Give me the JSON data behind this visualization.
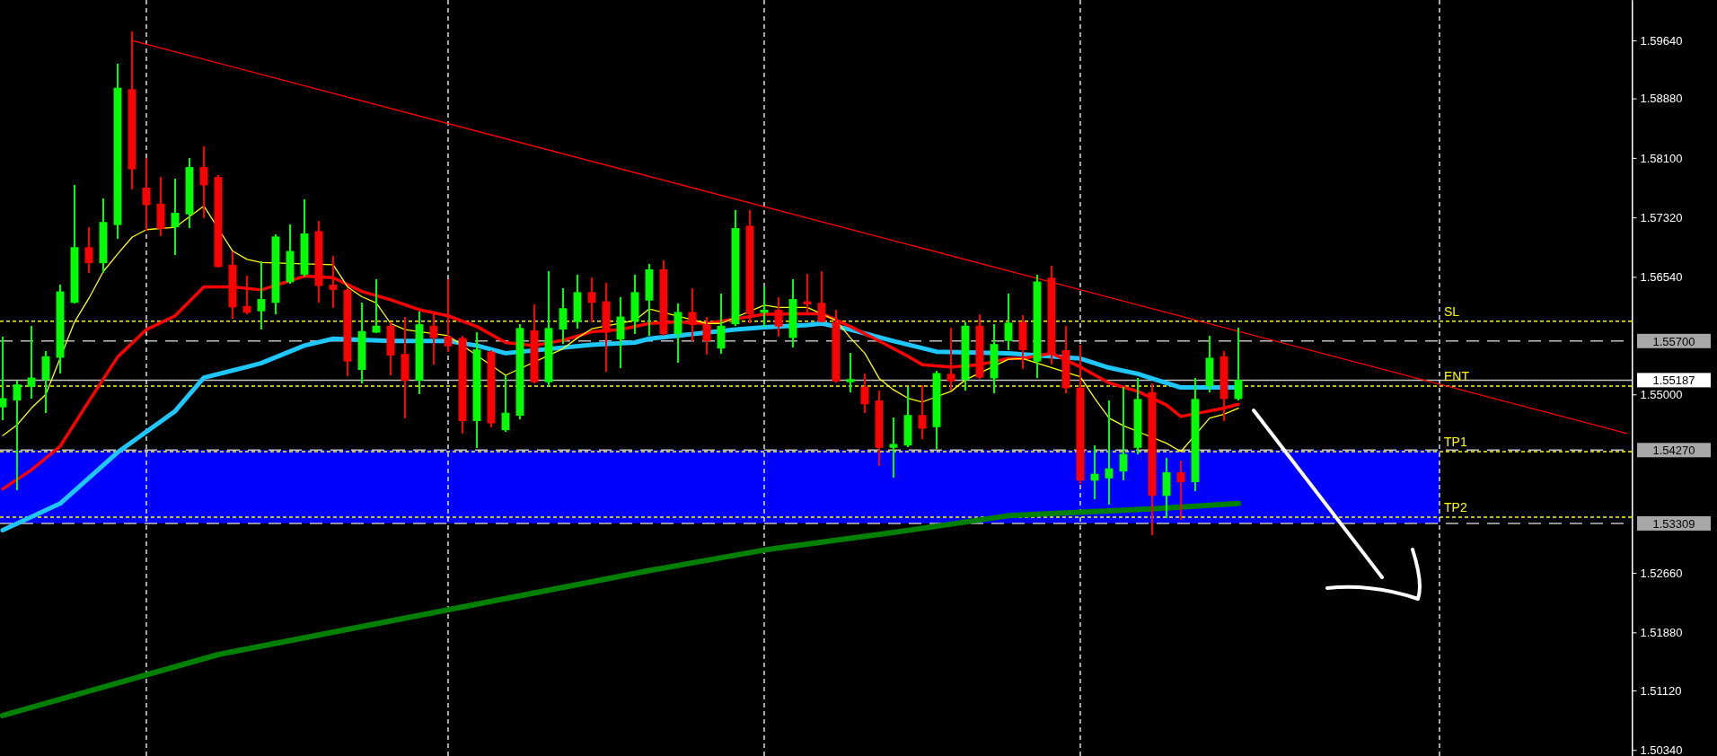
{
  "chart_data": {
    "type": "candlestick",
    "categories": [
      null,
      null,
      null,
      null,
      null,
      null,
      null,
      null,
      null,
      null,
      null,
      null,
      null,
      null,
      null,
      null,
      null,
      null,
      null,
      null,
      null,
      null,
      null,
      null,
      null,
      null,
      null,
      null,
      null,
      null,
      null,
      null,
      null,
      null,
      null,
      null,
      null,
      null,
      null,
      null,
      null,
      null,
      null,
      null,
      null,
      null,
      null,
      null,
      null,
      null,
      null,
      null,
      null,
      null,
      null,
      null,
      null,
      null,
      null,
      null,
      null,
      null,
      null,
      null,
      null,
      null,
      null,
      null,
      null,
      null,
      null,
      null,
      null,
      null,
      null,
      null,
      null,
      null,
      null,
      null,
      null,
      null,
      null,
      null,
      null,
      null,
      null,
      null,
      null,
      null,
      null,
      null,
      null,
      null,
      null,
      null,
      null,
      null,
      null,
      null,
      null,
      null,
      null,
      null,
      null,
      null,
      null,
      null,
      null,
      null,
      null,
      null,
      null,
      null
    ],
    "ohlc": [
      [
        1.5483,
        1.5576,
        1.5466,
        1.5495
      ],
      [
        1.5492,
        1.5518,
        1.5374,
        1.5513
      ],
      [
        1.551,
        1.559,
        1.5495,
        1.5522
      ],
      [
        1.5519,
        1.5557,
        1.5476,
        1.555
      ],
      [
        1.5548,
        1.5644,
        1.5527,
        1.5635
      ],
      [
        1.562,
        1.5775,
        1.5619,
        1.5693
      ],
      [
        1.5693,
        1.5719,
        1.5659,
        1.5672
      ],
      [
        1.5672,
        1.5757,
        1.5659,
        1.5726
      ],
      [
        1.5722,
        1.5933,
        1.5704,
        1.5902
      ],
      [
        1.59,
        1.5976,
        1.5769,
        1.5795
      ],
      [
        1.5771,
        1.581,
        1.5715,
        1.5748
      ],
      [
        1.575,
        1.5785,
        1.5708,
        1.5717
      ],
      [
        1.5719,
        1.5783,
        1.5683,
        1.5738
      ],
      [
        1.5736,
        1.581,
        1.5718,
        1.5798
      ],
      [
        1.5798,
        1.5825,
        1.5731,
        1.5774
      ],
      [
        1.5785,
        1.5787,
        1.5666,
        1.5667
      ],
      [
        1.567,
        1.5688,
        1.5599,
        1.5614
      ],
      [
        1.5616,
        1.5656,
        1.5605,
        1.5607
      ],
      [
        1.5609,
        1.5675,
        1.5585,
        1.5625
      ],
      [
        1.562,
        1.571,
        1.5605,
        1.5707
      ],
      [
        1.5647,
        1.5723,
        1.5645,
        1.5688
      ],
      [
        1.5657,
        1.5756,
        1.5655,
        1.5711
      ],
      [
        1.5714,
        1.5727,
        1.562,
        1.5642
      ],
      [
        1.5644,
        1.5681,
        1.5613,
        1.5637
      ],
      [
        1.5637,
        1.5639,
        1.5524,
        1.5543
      ],
      [
        1.5532,
        1.562,
        1.5515,
        1.5583
      ],
      [
        1.5581,
        1.5651,
        1.558,
        1.559
      ],
      [
        1.559,
        1.5594,
        1.5525,
        1.5551
      ],
      [
        1.5553,
        1.5602,
        1.5468,
        1.5518
      ],
      [
        1.5518,
        1.5609,
        1.55,
        1.5592
      ],
      [
        1.559,
        1.5606,
        1.5539,
        1.5574
      ],
      [
        1.5576,
        1.5651,
        1.5556,
        1.5563
      ],
      [
        1.5574,
        1.5577,
        1.5449,
        1.5465
      ],
      [
        1.5465,
        1.5581,
        1.543,
        1.5559
      ],
      [
        1.5556,
        1.5558,
        1.5457,
        1.5462
      ],
      [
        1.5453,
        1.5525,
        1.5451,
        1.5476
      ],
      [
        1.5472,
        1.5592,
        1.5467,
        1.5587
      ],
      [
        1.5584,
        1.5618,
        1.5514,
        1.5516
      ],
      [
        1.5516,
        1.5662,
        1.5511,
        1.5587
      ],
      [
        1.5585,
        1.5639,
        1.5566,
        1.5613
      ],
      [
        1.5595,
        1.5657,
        1.5586,
        1.5634
      ],
      [
        1.5634,
        1.5653,
        1.5594,
        1.562
      ],
      [
        1.5622,
        1.5646,
        1.553,
        1.5581
      ],
      [
        1.5572,
        1.5627,
        1.5534,
        1.5602
      ],
      [
        1.5596,
        1.5657,
        1.5579,
        1.5634
      ],
      [
        1.5623,
        1.5671,
        1.5577,
        1.5664
      ],
      [
        1.5664,
        1.5676,
        1.5577,
        1.5579
      ],
      [
        1.5579,
        1.5619,
        1.5541,
        1.5608
      ],
      [
        1.5608,
        1.5639,
        1.557,
        1.5591
      ],
      [
        1.5591,
        1.5602,
        1.5552,
        1.557
      ],
      [
        1.556,
        1.5632,
        1.5553,
        1.559
      ],
      [
        1.5592,
        1.5742,
        1.559,
        1.5718
      ],
      [
        1.5721,
        1.5742,
        1.5593,
        1.5605
      ],
      [
        1.5607,
        1.5642,
        1.5589,
        1.5611
      ],
      [
        1.5611,
        1.5627,
        1.5576,
        1.5589
      ],
      [
        1.5574,
        1.5651,
        1.5562,
        1.5625
      ],
      [
        1.5622,
        1.5658,
        1.5605,
        1.5618
      ],
      [
        1.562,
        1.5662,
        1.5594,
        1.5595
      ],
      [
        1.5595,
        1.5611,
        1.5516,
        1.5517
      ],
      [
        1.5516,
        1.5555,
        1.5503,
        1.552
      ],
      [
        1.551,
        1.5527,
        1.5476,
        1.5487
      ],
      [
        1.5492,
        1.5505,
        1.5406,
        1.543
      ],
      [
        1.543,
        1.547,
        1.5391,
        1.5435
      ],
      [
        1.5433,
        1.551,
        1.5431,
        1.5473
      ],
      [
        1.5473,
        1.5512,
        1.5441,
        1.5455
      ],
      [
        1.5457,
        1.5531,
        1.5428,
        1.5528
      ],
      [
        1.5527,
        1.5587,
        1.5505,
        1.5517
      ],
      [
        1.5519,
        1.5595,
        1.5505,
        1.559
      ],
      [
        1.559,
        1.5605,
        1.552,
        1.5522
      ],
      [
        1.5521,
        1.5592,
        1.5501,
        1.5566
      ],
      [
        1.557,
        1.5632,
        1.5558,
        1.5594
      ],
      [
        1.5595,
        1.5604,
        1.5533,
        1.5558
      ],
      [
        1.5543,
        1.5657,
        1.5522,
        1.5648
      ],
      [
        1.5653,
        1.5669,
        1.5539,
        1.5552
      ],
      [
        1.5558,
        1.559,
        1.5501,
        1.5508
      ],
      [
        1.5509,
        1.5565,
        1.5383,
        1.5387
      ],
      [
        1.5387,
        1.5433,
        1.5363,
        1.5396
      ],
      [
        1.539,
        1.5492,
        1.5356,
        1.5403
      ],
      [
        1.5399,
        1.551,
        1.5387,
        1.5422
      ],
      [
        1.543,
        1.5522,
        1.5421,
        1.5494
      ],
      [
        1.5503,
        1.5514,
        1.5315,
        1.5367
      ],
      [
        1.5367,
        1.5417,
        1.5338,
        1.5398
      ],
      [
        1.5398,
        1.5413,
        1.5336,
        1.5385
      ],
      [
        1.5385,
        1.5522,
        1.5373,
        1.5494
      ],
      [
        1.5511,
        1.5577,
        1.5503,
        1.5548
      ],
      [
        1.555,
        1.5557,
        1.5465,
        1.5494
      ],
      [
        1.5494,
        1.5587,
        1.5492,
        1.5519
      ],
      null,
      null,
      null,
      null,
      null,
      null,
      null,
      null,
      null,
      null,
      null,
      null,
      null,
      null,
      null,
      null,
      null,
      null,
      null,
      null,
      null,
      null,
      null,
      null,
      null,
      null,
      null
    ],
    "colors": [
      "#00ff00",
      "#00ff00",
      "#00ff00",
      "#00ff00",
      "#00ff00",
      "#00ff00",
      "#ff0000",
      "#00ff00",
      "#00ff00",
      "#ff0000",
      "#ff0000",
      "#ff0000",
      "#00ff00",
      "#00ff00",
      "#ff0000",
      "#ff0000",
      "#ff0000",
      "#ff0000",
      "#00ff00",
      "#00ff00",
      "#00ff00",
      "#00ff00",
      "#ff0000",
      "#ff0000",
      "#ff0000",
      "#00ff00",
      "#00ff00",
      "#ff0000",
      "#ff0000",
      "#00ff00",
      "#ff0000",
      "#ff0000",
      "#ff0000",
      "#00ff00",
      "#ff0000",
      "#00ff00",
      "#00ff00",
      "#ff0000",
      "#00ff00",
      "#00ff00",
      "#00ff00",
      "#ff0000",
      "#ff0000",
      "#00ff00",
      "#00ff00",
      "#00ff00",
      "#ff0000",
      "#00ff00",
      "#ff0000",
      "#ff0000",
      "#00ff00",
      "#00ff00",
      "#ff0000",
      "#00ff00",
      "#ff0000",
      "#00ff00",
      "#ff0000",
      "#ff0000",
      "#ff0000",
      "#00ff00",
      "#ff0000",
      "#ff0000",
      "#00ff00",
      "#00ff00",
      "#ff0000",
      "#00ff00",
      "#ff0000",
      "#00ff00",
      "#ff0000",
      "#00ff00",
      "#00ff00",
      "#ff0000",
      "#00ff00",
      "#ff0000",
      "#ff0000",
      "#ff0000",
      "#00ff00",
      "#00ff00",
      "#00ff00",
      "#00ff00",
      "#ff0000",
      "#00ff00",
      "#ff0000",
      "#00ff00",
      "#00ff00",
      "#ff0000",
      "#00ff00",
      null,
      null,
      null,
      null,
      null,
      null,
      null,
      null,
      null,
      null,
      null,
      null,
      null,
      null,
      null,
      null,
      null,
      null,
      null,
      null,
      null,
      null,
      null,
      null,
      null,
      null,
      null
    ],
    "series": [
      {
        "type": "line",
        "color": "#008000",
        "values": [
          1.5079,
          null,
          null,
          null,
          null,
          null,
          null,
          null,
          null,
          null,
          null,
          null,
          null,
          null,
          null,
          1.5159,
          null,
          null,
          null,
          null,
          null,
          null,
          null,
          null,
          null,
          null,
          null,
          null,
          null,
          null,
          1.5214,
          null,
          null,
          null,
          null,
          null,
          null,
          null,
          null,
          null,
          null,
          null,
          null,
          null,
          null,
          1.5269,
          null,
          null,
          null,
          null,
          null,
          null,
          null,
          1.5296,
          null,
          null,
          null,
          null,
          null,
          null,
          null,
          null,
          1.5319,
          null,
          null,
          null,
          null,
          null,
          null,
          null,
          1.5341,
          null,
          null,
          null,
          null,
          null,
          null,
          null,
          null,
          null,
          1.535,
          null,
          null,
          null,
          null,
          null,
          1.5357,
          null,
          null,
          null,
          null,
          null,
          null,
          null,
          null,
          null,
          null,
          null,
          null,
          null,
          null,
          null,
          null,
          null,
          null,
          null,
          null,
          null,
          null,
          null,
          null,
          null,
          null,
          null
        ]
      },
      {
        "type": "line",
        "color": "#1ec8ff",
        "values": [
          1.5322,
          null,
          null,
          null,
          1.5357,
          null,
          null,
          null,
          1.5424,
          null,
          null,
          null,
          1.5478,
          null,
          1.5522,
          null,
          null,
          1.5536,
          1.5541,
          null,
          null,
          1.5564,
          null,
          1.5573,
          null,
          null,
          null,
          1.557,
          null,
          null,
          null,
          1.557,
          null,
          1.5564,
          null,
          1.5554,
          null,
          null,
          null,
          null,
          null,
          1.5565,
          null,
          null,
          1.5568,
          1.5573,
          null,
          null,
          null,
          null,
          null,
          1.5585,
          null,
          1.5588,
          null,
          null,
          1.5591,
          1.5593,
          null,
          1.5585,
          null,
          null,
          1.557,
          null,
          null,
          1.5556,
          null,
          null,
          null,
          null,
          1.5554,
          null,
          null,
          null,
          null,
          1.5547,
          null,
          1.5535,
          null,
          1.5527,
          null,
          1.5515,
          1.5509,
          null,
          1.5509,
          null,
          1.5509,
          null,
          null,
          null,
          null,
          null,
          null,
          null,
          null,
          null,
          null,
          null,
          null,
          null,
          null,
          null,
          null,
          null,
          null,
          null,
          null,
          null,
          null,
          null,
          null,
          null,
          null,
          null
        ]
      },
      {
        "type": "line",
        "color": "#ff0000",
        "values": [
          1.5376,
          null,
          1.5401,
          null,
          1.5432,
          null,
          1.5491,
          null,
          1.5549,
          null,
          1.5585,
          null,
          1.5603,
          null,
          1.5641,
          null,
          1.5641,
          null,
          1.5637,
          null,
          null,
          1.5655,
          null,
          1.5653,
          null,
          1.5635,
          null,
          1.5624,
          null,
          1.5611,
          null,
          1.5603,
          null,
          1.5589,
          null,
          1.5568,
          null,
          1.5564,
          null,
          1.5571,
          null,
          1.5582,
          null,
          1.5585,
          null,
          1.5593,
          null,
          1.5595,
          null,
          1.5593,
          null,
          null,
          null,
          1.5605,
          null,
          null,
          null,
          1.5606,
          null,
          1.5589,
          null,
          1.557,
          null,
          1.555,
          1.5539,
          null,
          1.5536,
          null,
          1.5539,
          null,
          1.5547,
          1.5547,
          null,
          1.5554,
          null,
          1.5536,
          null,
          1.5515,
          null,
          1.5504,
          null,
          1.5486,
          1.5471,
          null,
          null,
          1.5482,
          1.5487,
          null,
          null,
          null,
          null,
          null,
          null,
          null,
          null,
          null,
          null,
          null,
          null,
          null,
          null,
          null,
          null,
          null,
          null,
          null,
          null,
          null,
          null,
          null,
          null,
          null,
          null,
          null
        ]
      },
      {
        "type": "line",
        "color": "#ffff00",
        "values": [
          1.5446,
          1.546,
          1.5482,
          1.55,
          null,
          1.5595,
          1.5626,
          1.5661,
          1.5684,
          1.5706,
          1.5716,
          null,
          1.5719,
          1.5733,
          1.5747,
          null,
          1.5688,
          1.5677,
          1.5673,
          null,
          null,
          null,
          null,
          1.567,
          1.5641,
          1.5628,
          1.562,
          1.5593,
          1.5585,
          null,
          null,
          1.5577,
          null,
          null,
          null,
          1.5525,
          null,
          null,
          null,
          1.556,
          1.5574,
          1.5586,
          null,
          null,
          1.5597,
          1.5612,
          null,
          null,
          null,
          1.5593,
          1.5593,
          null,
          null,
          1.5617,
          1.5614,
          null,
          1.5614,
          null,
          1.5597,
          1.5574,
          1.5554,
          1.5521,
          1.5506,
          1.5495,
          1.549,
          null,
          1.5504,
          1.5519,
          null,
          null,
          1.5546,
          1.5547,
          null,
          null,
          null,
          1.5523,
          1.5495,
          1.5469,
          1.5459,
          null,
          null,
          1.5436,
          1.5425,
          null,
          1.5469,
          1.5474,
          1.5482,
          null,
          null,
          null,
          null,
          null,
          null,
          null,
          null,
          null,
          null,
          null,
          null,
          null,
          null,
          null,
          null,
          null,
          null,
          null,
          null,
          null,
          null,
          null,
          null,
          null,
          null,
          null
        ]
      },
      {
        "type": "line",
        "color": "#ff0000",
        "values": [
          null,
          null,
          null,
          null,
          null,
          null,
          null,
          null,
          null,
          1.5964,
          null,
          null,
          null,
          null,
          null,
          null,
          null,
          null,
          null,
          null,
          null,
          null,
          null,
          null,
          null,
          null,
          null,
          null,
          null,
          null,
          null,
          null,
          null,
          null,
          null,
          null,
          null,
          null,
          null,
          null,
          null,
          null,
          null,
          null,
          null,
          null,
          null,
          null,
          null,
          null,
          null,
          null,
          null,
          null,
          null,
          null,
          null,
          null,
          null,
          null,
          null,
          null,
          null,
          null,
          null,
          null,
          null,
          null,
          null,
          null,
          null,
          null,
          null,
          null,
          null,
          null,
          null,
          null,
          null,
          null,
          null,
          null,
          null,
          null,
          null,
          null,
          null,
          null,
          null,
          null,
          null,
          null,
          null,
          null,
          null,
          null,
          null,
          null,
          null,
          null,
          null,
          null,
          null,
          null,
          null,
          null,
          null,
          null,
          null,
          null,
          null,
          null,
          null,
          1.5449
        ]
      }
    ],
    "ylim": [
      1.5026,
      1.6017
    ],
    "yticks": [
      {
        "value": 1.5964,
        "label": "1.59640"
      },
      {
        "value": 1.5888,
        "label": "1.58880"
      },
      {
        "value": 1.581,
        "label": "1.58100"
      },
      {
        "value": 1.5732,
        "label": "1.57320"
      },
      {
        "value": 1.5654,
        "label": "1.56540"
      },
      {
        "value": 1.55,
        "label": "1.55000"
      },
      {
        "value": 1.5266,
        "label": "1.52660"
      },
      {
        "value": 1.5188,
        "label": "1.51880"
      },
      {
        "value": 1.5112,
        "label": "1.51120"
      },
      {
        "value": 1.5034,
        "label": "1.50340"
      }
    ],
    "tick_labels": "y",
    "grid": "x",
    "bands": [
      {
        "axis": "y",
        "from": 1.5331,
        "to": 1.5427,
        "color": "#0000ff"
      }
    ],
    "ref_lines": [
      {
        "axis": "y",
        "value": 1.557,
        "label": "1.55700",
        "color": "#c0c0c0",
        "line_style": "dashed"
      },
      {
        "axis": "y",
        "value": 1.55187,
        "label": "1.55187",
        "color": "#c0c0c0",
        "line_style": "solid"
      },
      {
        "axis": "y",
        "value": 1.5427,
        "label": "1.54270",
        "color": "#c0c0c0",
        "line_style": "dashed"
      },
      {
        "axis": "y",
        "value": 1.53309,
        "label": "1.53309",
        "color": "#c0c0c0",
        "line_style": "dashed"
      },
      {
        "axis": "y",
        "value": 1.5596,
        "label": "SL",
        "color": "#ffff00",
        "line_style": "dotted"
      },
      {
        "axis": "y",
        "value": 1.5511,
        "label": "ENT",
        "color": "#ffff00",
        "line_style": "dotted"
      },
      {
        "axis": "y",
        "value": 1.5425,
        "label": "TP1",
        "color": "#ffff00",
        "line_style": "dotted"
      },
      {
        "axis": "y",
        "value": 1.5339,
        "label": "TP2",
        "color": "#ffff00",
        "line_style": "dotted"
      }
    ]
  }
}
